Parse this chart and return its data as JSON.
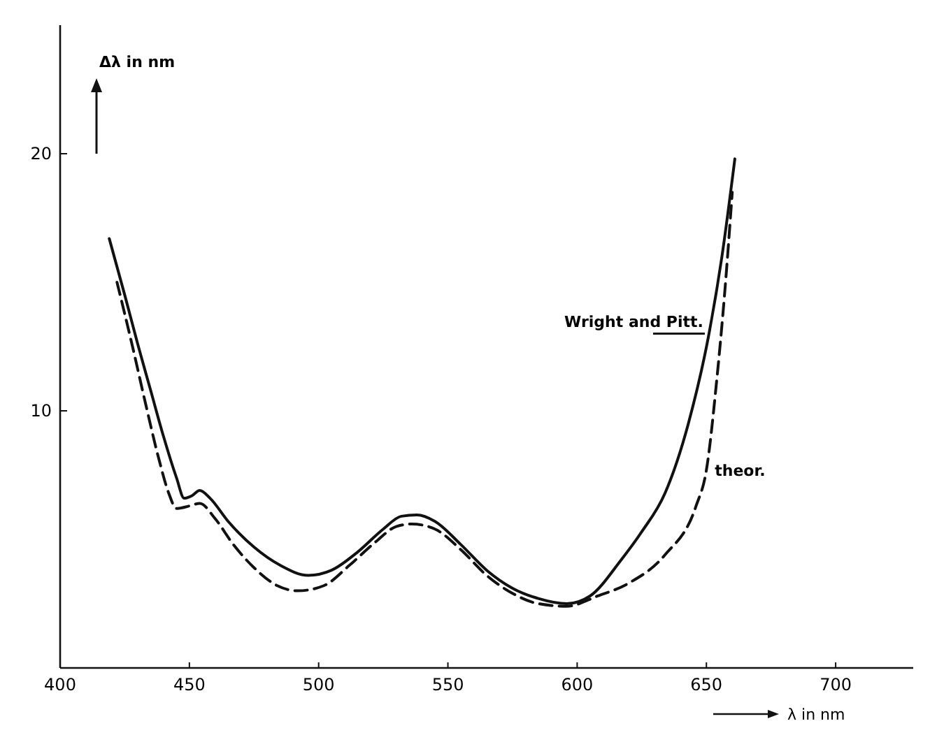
{
  "chart_data": {
    "type": "line",
    "xlabel": "λ in nm",
    "ylabel": "Δλ in nm",
    "xlim": [
      400,
      730
    ],
    "ylim": [
      0,
      25
    ],
    "xticks": [
      400,
      450,
      500,
      550,
      600,
      650,
      700
    ],
    "yticks": [
      10,
      20
    ],
    "grid": false,
    "legend": false,
    "marker": "none",
    "series": [
      {
        "name": "Wright and Pitt.",
        "color": "#111111",
        "line_style": "solid",
        "x": [
          419,
          425,
          430,
          435,
          440,
          445,
          448,
          451,
          454,
          458,
          465,
          475,
          485,
          496,
          505,
          515,
          525,
          532,
          538,
          545,
          555,
          565,
          575,
          585,
          596,
          605,
          617,
          625,
          634,
          643,
          651,
          656,
          661
        ],
        "values": [
          16.7,
          14.5,
          12.6,
          10.8,
          9.0,
          7.4,
          6.6,
          6.7,
          6.9,
          6.6,
          5.7,
          4.7,
          4.0,
          3.6,
          3.8,
          4.5,
          5.4,
          5.9,
          5.95,
          5.7,
          4.8,
          3.8,
          3.1,
          2.7,
          2.5,
          2.8,
          4.2,
          5.3,
          6.8,
          9.5,
          13.0,
          16.0,
          19.8
        ]
      },
      {
        "name": "theor.",
        "color": "#111111",
        "line_style": "dashed",
        "x": [
          422,
          428,
          433,
          438,
          442,
          445,
          450,
          454,
          460,
          467,
          475,
          484,
          492,
          502,
          512,
          522,
          530,
          536,
          545,
          555,
          565,
          575,
          585,
          596,
          608,
          620,
          634,
          646,
          650,
          654,
          657,
          660
        ],
        "values": [
          15.0,
          12.5,
          10.3,
          8.2,
          6.8,
          6.2,
          6.3,
          6.4,
          5.8,
          4.8,
          3.9,
          3.2,
          3.0,
          3.2,
          4.0,
          4.9,
          5.5,
          5.6,
          5.4,
          4.6,
          3.6,
          2.9,
          2.5,
          2.4,
          2.8,
          3.3,
          4.4,
          6.3,
          7.7,
          11.2,
          14.5,
          18.5
        ]
      }
    ]
  }
}
